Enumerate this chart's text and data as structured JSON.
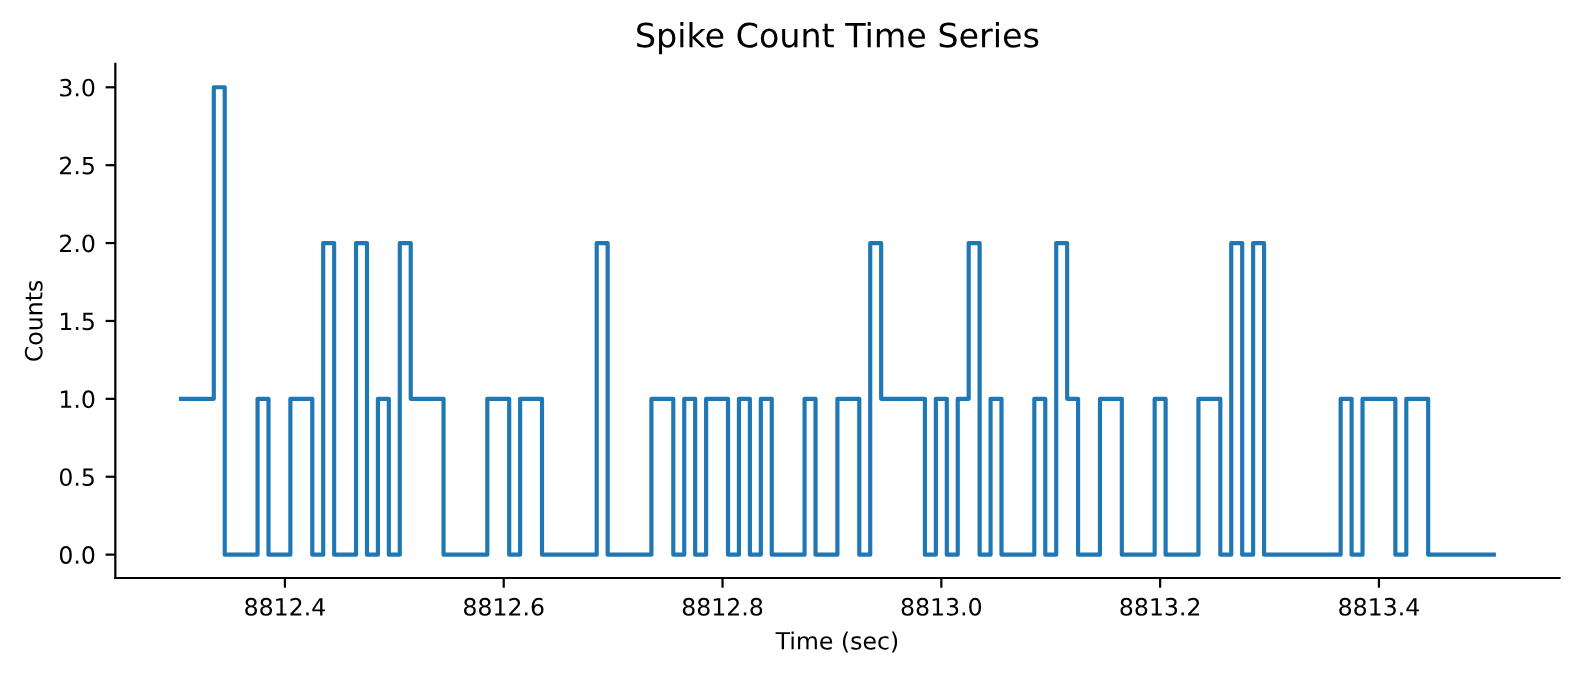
{
  "chart_data": {
    "type": "step",
    "title": "Spike Count Time Series",
    "xlabel": "Time (sec)",
    "ylabel": "Counts",
    "x": [
      8812.305,
      8812.315,
      8812.325,
      8812.335,
      8812.345,
      8812.355,
      8812.365,
      8812.375,
      8812.385,
      8812.395,
      8812.405,
      8812.415,
      8812.425,
      8812.435,
      8812.445,
      8812.455,
      8812.465,
      8812.475,
      8812.485,
      8812.495,
      8812.505,
      8812.515,
      8812.525,
      8812.535,
      8812.545,
      8812.555,
      8812.565,
      8812.575,
      8812.585,
      8812.595,
      8812.605,
      8812.615,
      8812.625,
      8812.635,
      8812.645,
      8812.655,
      8812.665,
      8812.675,
      8812.685,
      8812.695,
      8812.705,
      8812.715,
      8812.725,
      8812.735,
      8812.745,
      8812.755,
      8812.765,
      8812.775,
      8812.785,
      8812.795,
      8812.805,
      8812.815,
      8812.825,
      8812.835,
      8812.845,
      8812.855,
      8812.865,
      8812.875,
      8812.885,
      8812.895,
      8812.905,
      8812.915,
      8812.925,
      8812.935,
      8812.945,
      8812.955,
      8812.965,
      8812.975,
      8812.985,
      8812.995,
      8813.005,
      8813.015,
      8813.025,
      8813.035,
      8813.045,
      8813.055,
      8813.065,
      8813.075,
      8813.085,
      8813.095,
      8813.105,
      8813.115,
      8813.125,
      8813.135,
      8813.145,
      8813.155,
      8813.165,
      8813.175,
      8813.185,
      8813.195,
      8813.205,
      8813.215,
      8813.225,
      8813.235,
      8813.245,
      8813.255,
      8813.265,
      8813.275,
      8813.285,
      8813.295,
      8813.305,
      8813.315,
      8813.325,
      8813.335,
      8813.345,
      8813.355,
      8813.365,
      8813.375,
      8813.385,
      8813.395,
      8813.405,
      8813.415,
      8813.425,
      8813.435,
      8813.445,
      8813.455,
      8813.465,
      8813.475,
      8813.485,
      8813.495,
      8813.505
    ],
    "series": [
      {
        "color": "#1f77b4",
        "values": [
          1,
          1,
          1,
          3,
          0,
          0,
          0,
          1,
          0,
          0,
          1,
          1,
          0,
          2,
          0,
          0,
          2,
          0,
          1,
          0,
          2,
          1,
          1,
          1,
          0,
          0,
          0,
          0,
          1,
          1,
          0,
          1,
          1,
          0,
          0,
          0,
          0,
          0,
          2,
          0,
          0,
          0,
          0,
          1,
          1,
          0,
          1,
          0,
          1,
          1,
          0,
          1,
          0,
          1,
          0,
          0,
          0,
          1,
          0,
          0,
          1,
          1,
          0,
          2,
          1,
          1,
          1,
          1,
          0,
          1,
          0,
          1,
          2,
          0,
          1,
          0,
          0,
          0,
          1,
          0,
          2,
          1,
          0,
          0,
          1,
          1,
          0,
          0,
          0,
          1,
          0,
          0,
          0,
          1,
          1,
          0,
          2,
          0,
          2,
          0,
          0,
          0,
          0,
          0,
          0,
          0,
          1,
          0,
          1,
          1,
          1,
          0,
          1,
          1,
          0,
          0,
          0,
          0,
          0,
          0,
          0
        ]
      }
    ],
    "xlim": [
      8812.245,
      8813.565
    ],
    "xticks": [
      {
        "value": 8812.4,
        "label": "8812.4"
      },
      {
        "value": 8812.6,
        "label": "8812.6"
      },
      {
        "value": 8812.8,
        "label": "8812.8"
      },
      {
        "value": 8813.0,
        "label": "8813.0"
      },
      {
        "value": 8813.2,
        "label": "8813.2"
      },
      {
        "value": 8813.4,
        "label": "8813.4"
      }
    ],
    "ylim": [
      -0.15,
      3.15
    ],
    "yticks": [
      {
        "value": 0,
        "label": "0.0"
      },
      {
        "value": 0.5,
        "label": "0.5"
      },
      {
        "value": 1,
        "label": "1.0"
      },
      {
        "value": 1.5,
        "label": "1.5"
      },
      {
        "value": 2,
        "label": "2.0"
      },
      {
        "value": 2.5,
        "label": "2.5"
      },
      {
        "value": 3,
        "label": "3.0"
      }
    ],
    "grid": false,
    "legend": false,
    "line_style": "solid"
  }
}
